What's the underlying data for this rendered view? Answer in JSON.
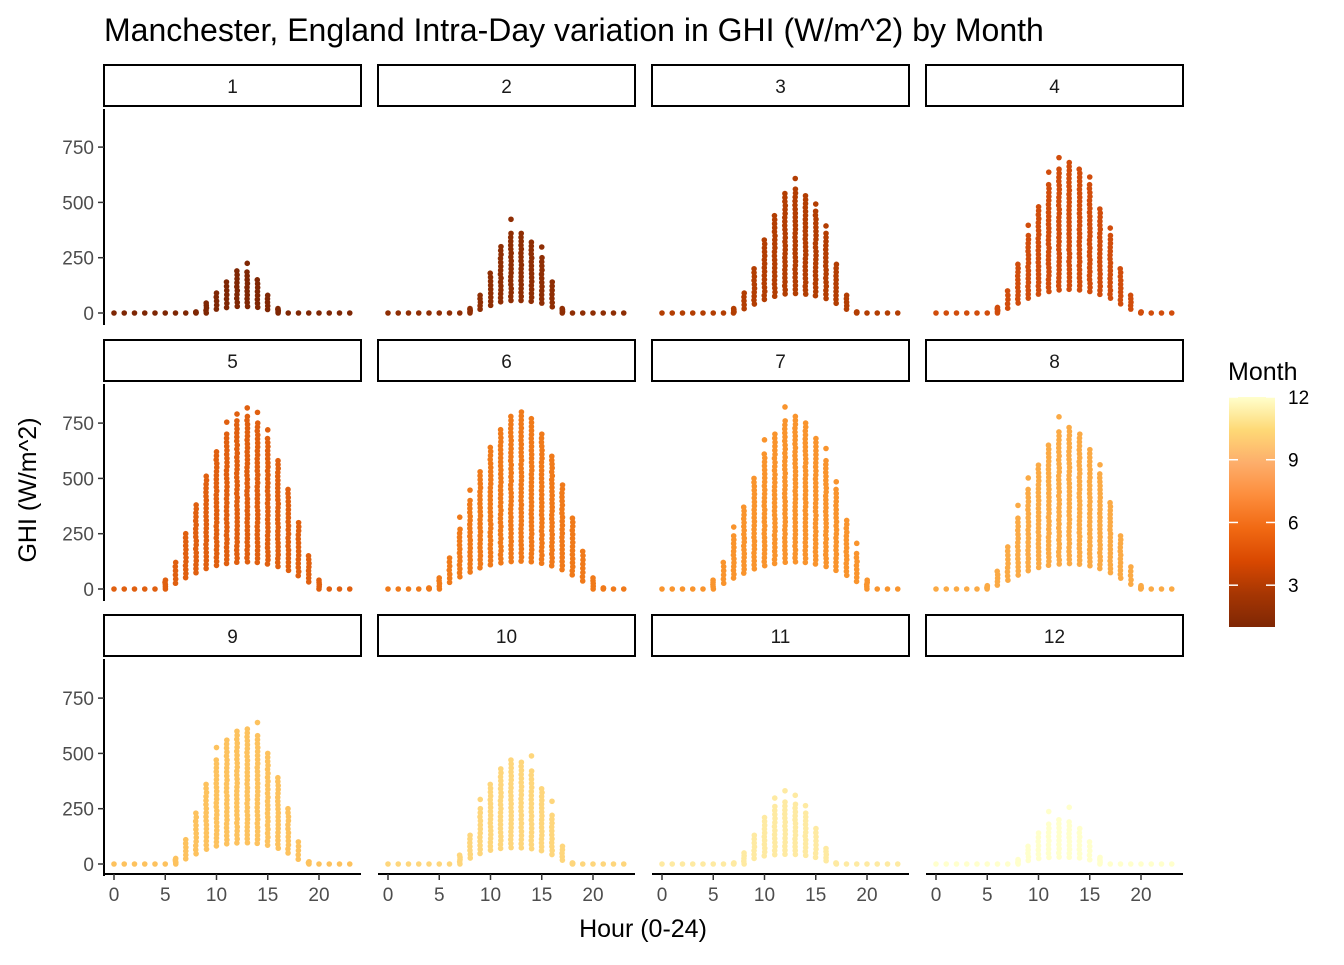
{
  "chart_data": {
    "type": "scatter",
    "title": "Manchester, England Intra-Day variation in GHI (W/m^2) by Month",
    "xlabel": "Hour (0-24)",
    "ylabel": "GHI (W/m^2)",
    "facet_by": "Month",
    "xlim": [
      0,
      23
    ],
    "ylim": [
      0,
      900
    ],
    "x_ticks": [
      "0",
      "5",
      "10",
      "15",
      "20"
    ],
    "y_ticks": [
      "0",
      "250",
      "500",
      "750"
    ],
    "hours": [
      0,
      1,
      2,
      3,
      4,
      5,
      6,
      7,
      8,
      9,
      10,
      11,
      12,
      13,
      14,
      15,
      16,
      17,
      18,
      19,
      20,
      21,
      22,
      23
    ],
    "grid": false,
    "legend": {
      "title": "Month",
      "position": "right",
      "type": "continuous-colorbar",
      "ticks": [
        "3",
        "6",
        "9",
        "12"
      ],
      "range": [
        1,
        12
      ],
      "colors": [
        "#7f2704",
        "#a63603",
        "#d94801",
        "#f16913",
        "#fd8d3c",
        "#fdae6b",
        "#fed976",
        "#ffffcc"
      ]
    },
    "series": [
      {
        "label": "1",
        "color": "#7f2704",
        "values": [
          0,
          0,
          0,
          0,
          0,
          0,
          0,
          0,
          5,
          45,
          90,
          140,
          190,
          185,
          150,
          80,
          20,
          0,
          0,
          0,
          0,
          0,
          0,
          0
        ]
      },
      {
        "label": "2",
        "color": "#8f2e04",
        "values": [
          0,
          0,
          0,
          0,
          0,
          0,
          0,
          0,
          20,
          80,
          180,
          300,
          360,
          360,
          320,
          250,
          140,
          20,
          0,
          0,
          0,
          0,
          0,
          0
        ]
      },
      {
        "label": "3",
        "color": "#b33e03",
        "values": [
          0,
          0,
          0,
          0,
          0,
          0,
          0,
          20,
          90,
          200,
          330,
          440,
          540,
          560,
          530,
          460,
          360,
          220,
          80,
          5,
          0,
          0,
          0,
          0
        ]
      },
      {
        "label": "4",
        "color": "#d14d0c",
        "values": [
          0,
          0,
          0,
          0,
          0,
          0,
          25,
          100,
          220,
          350,
          480,
          580,
          650,
          680,
          650,
          580,
          470,
          350,
          200,
          80,
          5,
          0,
          0,
          0
        ]
      },
      {
        "label": "5",
        "color": "#e06010",
        "values": [
          0,
          0,
          0,
          0,
          0,
          40,
          120,
          250,
          380,
          510,
          620,
          700,
          760,
          780,
          750,
          680,
          580,
          450,
          300,
          150,
          40,
          0,
          0,
          0
        ]
      },
      {
        "label": "6",
        "color": "#f07a1a",
        "values": [
          0,
          0,
          0,
          0,
          5,
          50,
          140,
          270,
          400,
          530,
          640,
          720,
          780,
          800,
          770,
          700,
          600,
          470,
          320,
          170,
          50,
          5,
          0,
          0
        ]
      },
      {
        "label": "7",
        "color": "#f9942d",
        "values": [
          0,
          0,
          0,
          0,
          0,
          40,
          120,
          240,
          370,
          500,
          610,
          700,
          760,
          780,
          750,
          680,
          580,
          450,
          310,
          160,
          40,
          0,
          0,
          0
        ]
      },
      {
        "label": "8",
        "color": "#fbaa45",
        "values": [
          0,
          0,
          0,
          0,
          0,
          15,
          80,
          190,
          320,
          450,
          560,
          650,
          710,
          730,
          700,
          630,
          520,
          390,
          240,
          100,
          15,
          0,
          0,
          0
        ]
      },
      {
        "label": "9",
        "color": "#fdc25e",
        "values": [
          0,
          0,
          0,
          0,
          0,
          0,
          25,
          110,
          230,
          360,
          470,
          560,
          600,
          610,
          580,
          500,
          390,
          250,
          100,
          10,
          0,
          0,
          0,
          0
        ]
      },
      {
        "label": "10",
        "color": "#fed67c",
        "values": [
          0,
          0,
          0,
          0,
          0,
          0,
          0,
          40,
          130,
          250,
          360,
          430,
          470,
          460,
          420,
          340,
          220,
          80,
          5,
          0,
          0,
          0,
          0,
          0
        ]
      },
      {
        "label": "11",
        "color": "#feeaa2",
        "values": [
          0,
          0,
          0,
          0,
          0,
          0,
          0,
          5,
          50,
          130,
          210,
          260,
          280,
          270,
          230,
          160,
          70,
          5,
          0,
          0,
          0,
          0,
          0,
          0
        ]
      },
      {
        "label": "12",
        "color": "#ffffcc",
        "values": [
          0,
          0,
          0,
          0,
          0,
          0,
          0,
          0,
          20,
          80,
          140,
          180,
          200,
          190,
          160,
          100,
          30,
          0,
          0,
          0,
          0,
          0,
          0,
          0
        ]
      }
    ]
  }
}
